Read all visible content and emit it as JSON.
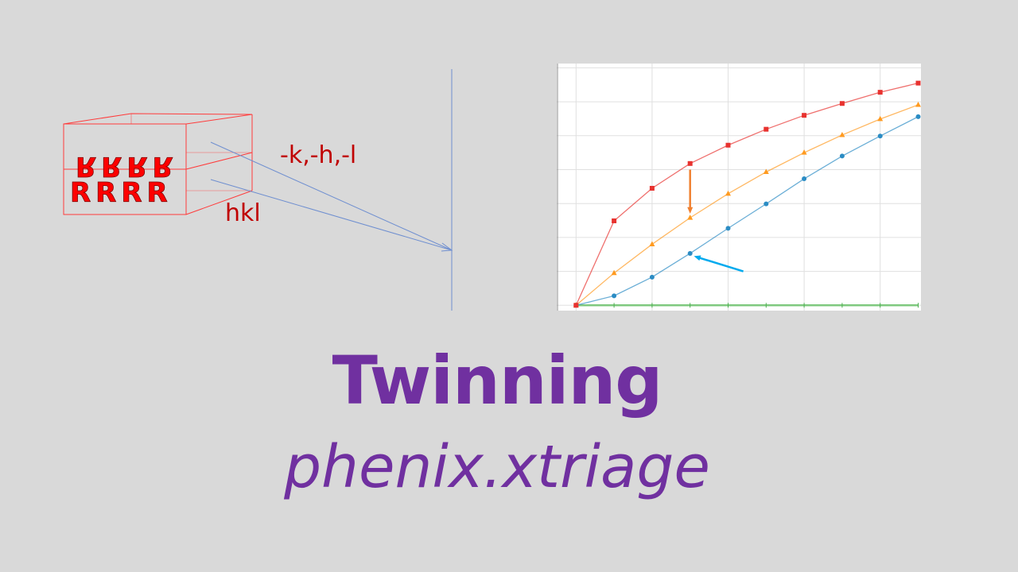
{
  "diagram": {
    "front_row_letters": "RRRR",
    "twin_row_letters": "RRRR",
    "twin_index_label": "-k,-h,-l",
    "index_label": "hkl",
    "crystal_color": "#ff0000",
    "ray_color": "#4472c4"
  },
  "chart_data": {
    "type": "line",
    "title": "",
    "xlabel": "",
    "ylabel": "",
    "x": [
      0,
      1,
      2,
      3,
      4,
      5,
      6,
      7,
      8,
      9
    ],
    "xlim": [
      -0.5,
      9
    ],
    "ylim": [
      0,
      7.1
    ],
    "grid": true,
    "series": [
      {
        "color": "#e8322f",
        "marker": "square",
        "values": [
          0,
          2.49,
          3.45,
          4.18,
          4.72,
          5.19,
          5.6,
          5.95,
          6.28,
          6.55
        ]
      },
      {
        "color": "#ff9a1f",
        "marker": "triangle",
        "values": [
          0,
          0.95,
          1.8,
          2.58,
          3.29,
          3.93,
          4.5,
          5.02,
          5.49,
          5.91
        ]
      },
      {
        "color": "#2b8cc4",
        "marker": "circle",
        "values": [
          0,
          0.28,
          0.83,
          1.53,
          2.27,
          2.99,
          3.73,
          4.4,
          4.99,
          5.56
        ]
      },
      {
        "color": "#7fc97f",
        "marker": "tick",
        "values": [
          0,
          0,
          0,
          0,
          0,
          0,
          0,
          0,
          0,
          0
        ]
      }
    ],
    "annotations": [
      {
        "type": "arrow",
        "color": "#f08030",
        "from": [
          3,
          4.0
        ],
        "to": [
          3,
          2.7
        ]
      },
      {
        "type": "arrow",
        "color": "#00aaee",
        "from": [
          4.4,
          1.0
        ],
        "to": [
          3.1,
          1.45
        ]
      }
    ]
  },
  "title": "Twinning",
  "subtitle": "phenix.xtriage"
}
